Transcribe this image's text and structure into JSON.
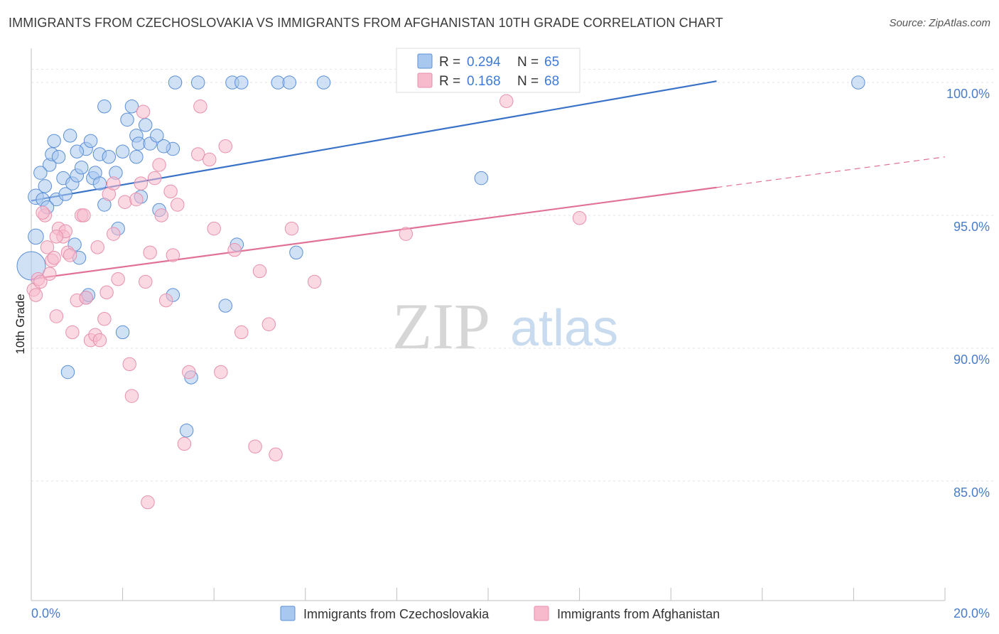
{
  "title": "IMMIGRANTS FROM CZECHOSLOVAKIA VS IMMIGRANTS FROM AFGHANISTAN 10TH GRADE CORRELATION CHART",
  "source": "Source: ZipAtlas.com",
  "watermark": {
    "zip": "ZIP",
    "atlas": "atlas"
  },
  "legend": {
    "r_label": "R =",
    "n_label": "N =",
    "entries": [
      {
        "r": "0.294",
        "n": "65",
        "color": "#a9c8ef",
        "stroke": "#5b8fd6"
      },
      {
        "r": "0.168",
        "n": "68",
        "color": "#f7b9cc",
        "stroke": "#e691ad"
      }
    ]
  },
  "chart_data": {
    "type": "scatter",
    "title": "IMMIGRANTS FROM CZECHOSLOVAKIA VS IMMIGRANTS FROM AFGHANISTAN 10TH GRADE CORRELATION CHART",
    "xlabel": "",
    "ylabel": "10th Grade",
    "xlim": [
      0,
      20
    ],
    "ylim": [
      80.5,
      101.5
    ],
    "x_tick_labels": [
      "0.0%",
      "20.0%"
    ],
    "y_ticks": [
      85,
      90,
      95,
      100
    ],
    "y_tick_labels": [
      "85.0%",
      "90.0%",
      "95.0%",
      "100.0%"
    ],
    "grid": true,
    "legend_position": "top-center",
    "series": [
      {
        "name": "Immigrants from Czechoslovakia",
        "color": "#a9c8ef",
        "stroke": "#5b8fd6",
        "line_color": "#3a72c8",
        "trend": {
          "x": [
            0.0,
            15.0
          ],
          "y": [
            95.55,
            100.05
          ]
        },
        "points": [
          [
            0.1,
            95.7
          ],
          [
            0.25,
            95.6
          ],
          [
            0.3,
            96.1
          ],
          [
            0.4,
            96.9
          ],
          [
            0.45,
            97.3
          ],
          [
            0.5,
            97.8
          ],
          [
            0.55,
            95.6
          ],
          [
            0.6,
            97.2
          ],
          [
            0.7,
            96.4
          ],
          [
            0.75,
            95.8
          ],
          [
            0.85,
            98.0
          ],
          [
            0.9,
            96.2
          ],
          [
            1.0,
            96.5
          ],
          [
            1.1,
            96.8
          ],
          [
            1.2,
            97.5
          ],
          [
            1.3,
            97.8
          ],
          [
            1.35,
            96.4
          ],
          [
            1.4,
            96.6
          ],
          [
            1.5,
            97.3
          ],
          [
            1.6,
            95.4
          ],
          [
            1.7,
            97.2
          ],
          [
            1.85,
            96.6
          ],
          [
            1.9,
            94.5
          ],
          [
            2.0,
            97.4
          ],
          [
            2.1,
            98.6
          ],
          [
            2.2,
            99.1
          ],
          [
            2.3,
            98.0
          ],
          [
            2.35,
            97.7
          ],
          [
            2.4,
            95.7
          ],
          [
            2.5,
            98.4
          ],
          [
            2.6,
            97.7
          ],
          [
            2.75,
            98.0
          ],
          [
            2.8,
            95.2
          ],
          [
            3.1,
            97.5
          ],
          [
            3.1,
            92.0
          ],
          [
            1.6,
            99.1
          ],
          [
            3.15,
            100.0
          ],
          [
            3.65,
            100.0
          ],
          [
            4.4,
            100.0
          ],
          [
            4.6,
            100.0
          ],
          [
            5.4,
            100.0
          ],
          [
            5.65,
            100.0
          ],
          [
            6.4,
            100.0
          ],
          [
            8.3,
            100.0
          ],
          [
            18.1,
            100.0
          ],
          [
            9.85,
            96.4
          ],
          [
            0.1,
            94.2
          ],
          [
            0.0,
            93.1
          ],
          [
            0.95,
            93.9
          ],
          [
            1.05,
            93.4
          ],
          [
            1.2,
            91.9
          ],
          [
            1.25,
            92.0
          ],
          [
            4.5,
            93.9
          ],
          [
            4.25,
            91.6
          ],
          [
            5.8,
            93.6
          ],
          [
            2.0,
            90.6
          ],
          [
            0.8,
            89.1
          ],
          [
            3.5,
            88.9
          ],
          [
            3.4,
            86.9
          ],
          [
            0.35,
            95.3
          ],
          [
            0.2,
            96.6
          ],
          [
            2.3,
            97.2
          ],
          [
            1.0,
            97.4
          ],
          [
            1.5,
            96.2
          ],
          [
            2.9,
            97.6
          ]
        ],
        "sizes": [
          14,
          12,
          12,
          12,
          12,
          12,
          12,
          12,
          12,
          12,
          12,
          12,
          12,
          12,
          12,
          12,
          12,
          12,
          12,
          12,
          12,
          12,
          12,
          12,
          12,
          12,
          12,
          12,
          12,
          12,
          12,
          12,
          12,
          12,
          12,
          12,
          12,
          12,
          12,
          12,
          12,
          12,
          12,
          12,
          12,
          12,
          14,
          26,
          12,
          12,
          12,
          12,
          12,
          12,
          12,
          12,
          12,
          12,
          12,
          12,
          12,
          12,
          12,
          12,
          12
        ]
      },
      {
        "name": "Immigrants from Afghanistan",
        "color": "#f7b9cc",
        "stroke": "#e691ad",
        "line_color": "#e07199",
        "trend": {
          "x": [
            0.0,
            15.0
          ],
          "y": [
            92.6,
            96.05
          ]
        },
        "trend_dashed": {
          "x": [
            15.0,
            20.0
          ],
          "y": [
            96.05,
            97.2
          ]
        },
        "points": [
          [
            0.05,
            92.2
          ],
          [
            0.1,
            92.0
          ],
          [
            0.15,
            92.6
          ],
          [
            0.2,
            92.5
          ],
          [
            0.3,
            95.0
          ],
          [
            0.35,
            93.8
          ],
          [
            0.4,
            92.8
          ],
          [
            0.45,
            93.3
          ],
          [
            0.5,
            93.4
          ],
          [
            0.55,
            91.2
          ],
          [
            0.6,
            94.5
          ],
          [
            0.7,
            94.2
          ],
          [
            0.75,
            94.4
          ],
          [
            0.8,
            93.6
          ],
          [
            0.85,
            93.5
          ],
          [
            0.9,
            90.6
          ],
          [
            1.0,
            91.8
          ],
          [
            1.1,
            95.0
          ],
          [
            1.15,
            95.0
          ],
          [
            1.2,
            91.9
          ],
          [
            1.3,
            90.3
          ],
          [
            1.4,
            90.5
          ],
          [
            1.45,
            93.8
          ],
          [
            1.5,
            90.3
          ],
          [
            1.6,
            91.1
          ],
          [
            1.65,
            92.1
          ],
          [
            1.7,
            95.8
          ],
          [
            1.8,
            94.3
          ],
          [
            1.9,
            92.6
          ],
          [
            2.05,
            95.5
          ],
          [
            2.15,
            89.4
          ],
          [
            2.2,
            88.2
          ],
          [
            2.3,
            95.6
          ],
          [
            2.4,
            96.2
          ],
          [
            2.5,
            92.5
          ],
          [
            2.6,
            93.6
          ],
          [
            2.7,
            96.4
          ],
          [
            2.8,
            96.9
          ],
          [
            2.85,
            95.0
          ],
          [
            2.95,
            91.8
          ],
          [
            3.05,
            95.9
          ],
          [
            3.1,
            93.5
          ],
          [
            3.2,
            95.4
          ],
          [
            3.35,
            86.4
          ],
          [
            3.45,
            89.1
          ],
          [
            3.65,
            97.3
          ],
          [
            3.7,
            99.1
          ],
          [
            3.9,
            97.1
          ],
          [
            4.0,
            94.5
          ],
          [
            4.15,
            89.1
          ],
          [
            4.25,
            97.6
          ],
          [
            4.45,
            93.7
          ],
          [
            4.6,
            90.6
          ],
          [
            4.9,
            86.3
          ],
          [
            5.0,
            92.9
          ],
          [
            5.2,
            90.9
          ],
          [
            5.35,
            86.0
          ],
          [
            5.7,
            94.5
          ],
          [
            6.2,
            92.5
          ],
          [
            8.2,
            94.3
          ],
          [
            9.0,
            100.0
          ],
          [
            10.4,
            99.3
          ],
          [
            12.0,
            94.9
          ],
          [
            2.55,
            84.2
          ],
          [
            2.45,
            98.9
          ],
          [
            1.8,
            96.2
          ],
          [
            0.55,
            94.2
          ],
          [
            0.25,
            95.1
          ]
        ],
        "sizes": [
          12,
          12,
          12,
          12,
          12,
          12,
          12,
          12,
          12,
          12,
          12,
          12,
          12,
          12,
          12,
          12,
          12,
          12,
          12,
          12,
          12,
          12,
          12,
          12,
          12,
          12,
          12,
          12,
          12,
          12,
          12,
          12,
          12,
          12,
          12,
          12,
          12,
          12,
          12,
          12,
          12,
          12,
          12,
          12,
          12,
          12,
          12,
          12,
          12,
          12,
          12,
          12,
          12,
          12,
          12,
          12,
          12,
          12,
          12,
          12,
          12,
          12,
          12,
          12,
          12,
          12,
          12,
          12
        ]
      }
    ]
  }
}
